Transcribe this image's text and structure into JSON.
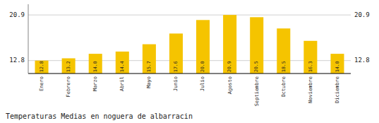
{
  "chart_data": {
    "type": "bar",
    "title": "Temperaturas Medias en noguera de albarracin",
    "categories": [
      "Enero",
      "Febrero",
      "Marzo",
      "Abril",
      "Mayo",
      "Junio",
      "Julio",
      "Agosto",
      "Septiembre",
      "Octubre",
      "Noviembre",
      "Diciembre"
    ],
    "values": [
      12.8,
      13.2,
      14.0,
      14.4,
      15.7,
      17.6,
      20.0,
      20.9,
      20.5,
      18.5,
      16.3,
      14.0
    ],
    "value_labels": [
      "12.8",
      "13.2",
      "14.0",
      "14.4",
      "15.7",
      "17.6",
      "20.0",
      "20.9",
      "20.5",
      "18.5",
      "16.3",
      "14.0"
    ],
    "color": "#F5C400",
    "ylim": [
      10.5,
      22.8
    ],
    "yticks": [
      12.8,
      20.9
    ],
    "grid": true,
    "data_labels": true
  }
}
